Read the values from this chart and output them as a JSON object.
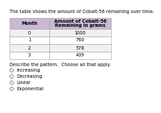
{
  "title": "The table shows the amount of Cobalt-56 remaining over time.",
  "col1_header": "Month",
  "col2_header": "Amount of Cobalt-56\nRemaining in grams",
  "rows": [
    [
      "0",
      "1000"
    ],
    [
      "1",
      "760"
    ],
    [
      "2",
      "578"
    ],
    [
      "3",
      "439"
    ]
  ],
  "header_bg": "#c9b8d5",
  "row_bg_even": "#f0f0f0",
  "row_bg_odd": "#ffffff",
  "question": "Describe the pattern.  Choose all that apply.",
  "options": [
    "Increasing",
    "Decreasing",
    "Linear",
    "Exponential"
  ],
  "title_fontsize": 4.8,
  "header_fontsize": 4.8,
  "cell_fontsize": 4.8,
  "question_fontsize": 4.8,
  "option_fontsize": 4.8,
  "border_color": "#999999",
  "background_color": "#ffffff"
}
